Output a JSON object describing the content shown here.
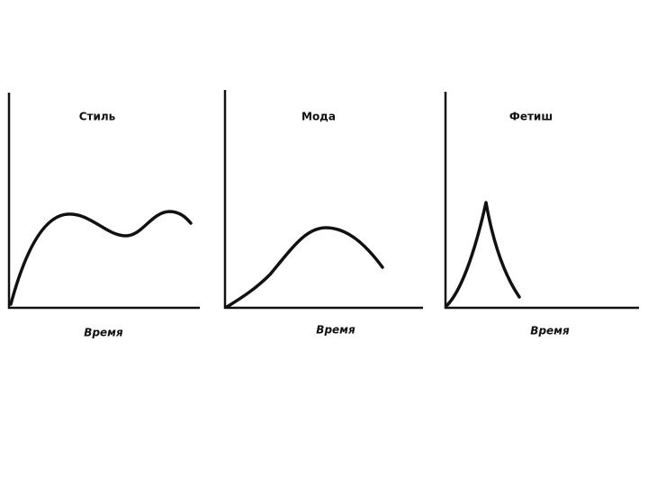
{
  "panels": [
    {
      "title": "Стиль",
      "x_label": "Время"
    },
    {
      "title": "Мода",
      "x_label": "Время"
    },
    {
      "title": "Фетиш",
      "x_label": "Время"
    }
  ]
}
